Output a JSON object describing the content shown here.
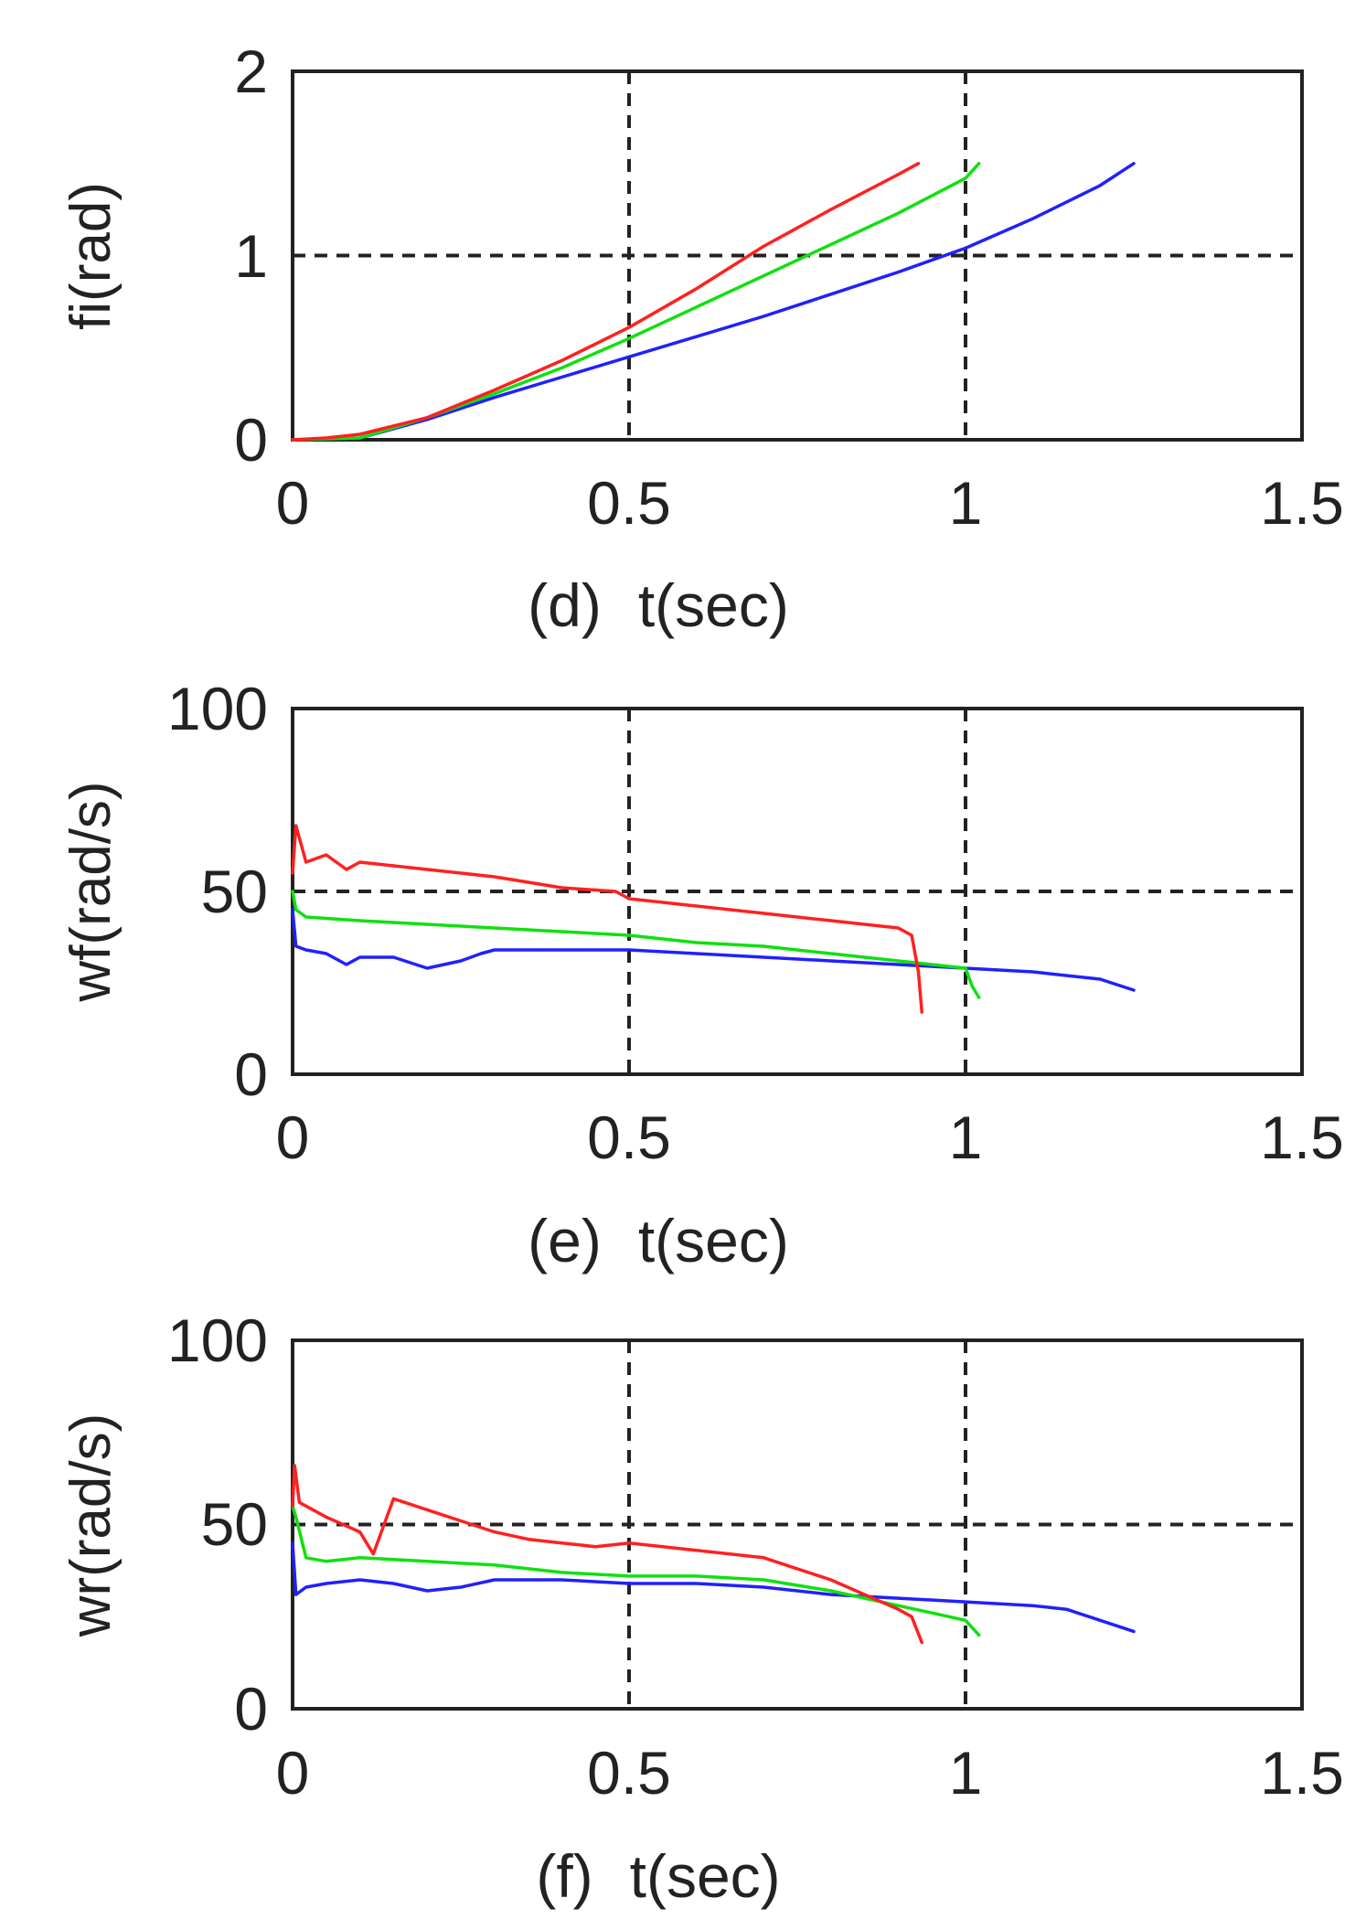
{
  "colors": {
    "red": "#ff2020",
    "green": "#10e010",
    "blue": "#2020ff",
    "axis": "#222222"
  },
  "chart_data": [
    {
      "type": "line",
      "panel_label": "(d)",
      "xlabel": "t(sec)",
      "ylabel": "fi(rad)",
      "xlim": [
        0,
        1.5
      ],
      "ylim": [
        0,
        2
      ],
      "xticks": [
        0,
        0.5,
        1,
        1.5
      ],
      "xtick_labels": [
        "0",
        "0.5",
        "1",
        "1.5"
      ],
      "yticks": [
        0,
        1,
        2
      ],
      "ytick_labels": [
        "0",
        "1",
        "2"
      ],
      "grid": true,
      "series": [
        {
          "name": "red",
          "color": "#ff2020",
          "x": [
            0,
            0.05,
            0.1,
            0.2,
            0.3,
            0.4,
            0.5,
            0.6,
            0.7,
            0.8,
            0.9,
            0.93
          ],
          "y": [
            0,
            0.01,
            0.03,
            0.12,
            0.27,
            0.43,
            0.61,
            0.82,
            1.05,
            1.25,
            1.44,
            1.5
          ]
        },
        {
          "name": "green",
          "color": "#10e010",
          "x": [
            0,
            0.1,
            0.2,
            0.3,
            0.4,
            0.5,
            0.6,
            0.7,
            0.8,
            0.9,
            1.0,
            1.02
          ],
          "y": [
            0,
            0.01,
            0.12,
            0.25,
            0.39,
            0.55,
            0.72,
            0.89,
            1.06,
            1.23,
            1.42,
            1.5
          ]
        },
        {
          "name": "blue",
          "color": "#2020ff",
          "x": [
            0,
            0.1,
            0.2,
            0.3,
            0.4,
            0.5,
            0.6,
            0.7,
            0.8,
            0.9,
            1.0,
            1.1,
            1.2,
            1.25
          ],
          "y": [
            0,
            0.01,
            0.11,
            0.23,
            0.34,
            0.45,
            0.56,
            0.67,
            0.79,
            0.91,
            1.04,
            1.2,
            1.38,
            1.5
          ]
        }
      ]
    },
    {
      "type": "line",
      "panel_label": "(e)",
      "xlabel": "t(sec)",
      "ylabel": "wf(rad/s)",
      "xlim": [
        0,
        1.5
      ],
      "ylim": [
        0,
        100
      ],
      "xticks": [
        0,
        0.5,
        1,
        1.5
      ],
      "xtick_labels": [
        "0",
        "0.5",
        "1",
        "1.5"
      ],
      "yticks": [
        0,
        50,
        100
      ],
      "ytick_labels": [
        "0",
        "50",
        "100"
      ],
      "grid": true,
      "series": [
        {
          "name": "red",
          "color": "#ff2020",
          "x": [
            0,
            0.005,
            0.02,
            0.05,
            0.08,
            0.1,
            0.15,
            0.2,
            0.3,
            0.4,
            0.48,
            0.5,
            0.55,
            0.6,
            0.7,
            0.8,
            0.9,
            0.92,
            0.93,
            0.935
          ],
          "y": [
            55,
            68,
            58,
            60,
            56,
            58,
            57,
            56,
            54,
            51,
            50,
            48,
            47,
            46,
            44,
            42,
            40,
            38,
            28,
            17
          ]
        },
        {
          "name": "green",
          "color": "#10e010",
          "x": [
            0,
            0.005,
            0.02,
            0.1,
            0.2,
            0.3,
            0.4,
            0.5,
            0.6,
            0.7,
            0.8,
            0.9,
            1.0,
            1.01,
            1.02
          ],
          "y": [
            50,
            45,
            43,
            42,
            41,
            40,
            39,
            38,
            36,
            35,
            33,
            31,
            29,
            24,
            21
          ]
        },
        {
          "name": "blue",
          "color": "#2020ff",
          "x": [
            0,
            0.005,
            0.02,
            0.05,
            0.08,
            0.1,
            0.15,
            0.2,
            0.25,
            0.28,
            0.3,
            0.4,
            0.5,
            0.6,
            0.7,
            0.8,
            0.9,
            1.0,
            1.1,
            1.2,
            1.25
          ],
          "y": [
            45,
            35,
            34,
            33,
            30,
            32,
            32,
            29,
            31,
            33,
            34,
            34,
            34,
            33,
            32,
            31,
            30,
            29,
            28,
            26,
            23
          ]
        }
      ]
    },
    {
      "type": "line",
      "panel_label": "(f)",
      "xlabel": "t(sec)",
      "ylabel": "wr(rad/s)",
      "xlim": [
        0,
        1.5
      ],
      "ylim": [
        0,
        100
      ],
      "xticks": [
        0,
        0.5,
        1,
        1.5
      ],
      "xtick_labels": [
        "0",
        "0.5",
        "1",
        "1.5"
      ],
      "yticks": [
        0,
        50,
        100
      ],
      "ytick_labels": [
        "0",
        "50",
        "100"
      ],
      "grid": true,
      "series": [
        {
          "name": "red",
          "color": "#ff2020",
          "x": [
            0,
            0.003,
            0.01,
            0.05,
            0.1,
            0.12,
            0.15,
            0.2,
            0.25,
            0.3,
            0.35,
            0.4,
            0.45,
            0.5,
            0.55,
            0.6,
            0.7,
            0.75,
            0.8,
            0.85,
            0.9,
            0.92,
            0.935
          ],
          "y": [
            55,
            66,
            56,
            52,
            48,
            42,
            57,
            54,
            51,
            48,
            46,
            45,
            44,
            45,
            44,
            43,
            41,
            38,
            35,
            31,
            27,
            25,
            18
          ]
        },
        {
          "name": "green",
          "color": "#10e010",
          "x": [
            0,
            0.005,
            0.02,
            0.05,
            0.1,
            0.2,
            0.3,
            0.4,
            0.5,
            0.6,
            0.7,
            0.8,
            0.9,
            0.95,
            1.0,
            1.02
          ],
          "y": [
            55,
            52,
            41,
            40,
            41,
            40,
            39,
            37,
            36,
            36,
            35,
            32,
            28,
            26,
            24,
            20
          ]
        },
        {
          "name": "blue",
          "color": "#2020ff",
          "x": [
            0,
            0.005,
            0.02,
            0.05,
            0.1,
            0.15,
            0.2,
            0.25,
            0.3,
            0.4,
            0.5,
            0.6,
            0.7,
            0.8,
            0.9,
            1.0,
            1.1,
            1.15,
            1.2,
            1.25
          ],
          "y": [
            45,
            31,
            33,
            34,
            35,
            34,
            32,
            33,
            35,
            35,
            34,
            34,
            33,
            31,
            30,
            29,
            28,
            27,
            24,
            21
          ]
        }
      ]
    }
  ]
}
